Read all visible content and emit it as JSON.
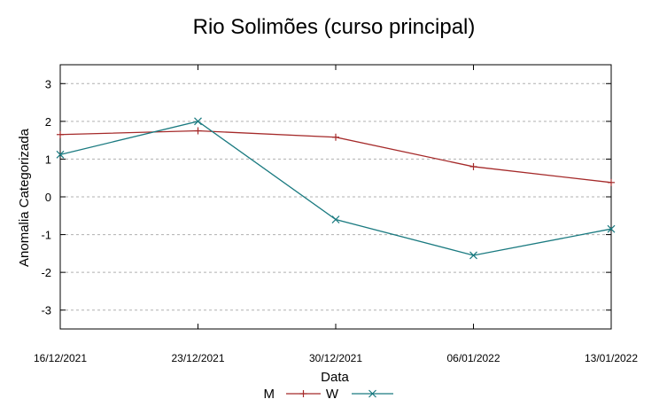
{
  "chart_data": {
    "type": "line",
    "title": "Rio Solimões (curso principal)",
    "xlabel": "Data",
    "ylabel": "Anomalia Categorizada",
    "ylim": [
      -3.5,
      3.5
    ],
    "yticks": [
      -3,
      -2,
      -1,
      0,
      1,
      2,
      3
    ],
    "categories": [
      "16/12/2021",
      "23/12/2021",
      "30/12/2021",
      "06/01/2022",
      "13/01/2022"
    ],
    "grid": true,
    "legend_position": "bottom",
    "series": [
      {
        "name": "M",
        "color": "#a52a2a",
        "marker": "plus",
        "values": [
          1.65,
          1.75,
          1.58,
          0.8,
          0.38
        ]
      },
      {
        "name": "W",
        "color": "#1a7a80",
        "marker": "x",
        "values": [
          1.12,
          2.0,
          -0.6,
          -1.55,
          -0.85
        ]
      }
    ]
  }
}
